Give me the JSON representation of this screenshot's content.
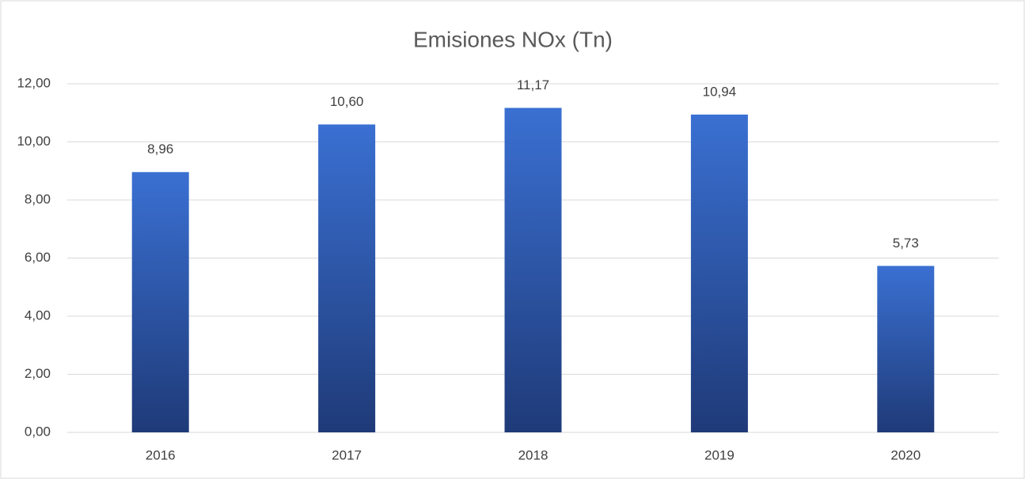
{
  "chart_data": {
    "type": "bar",
    "title": "Emisiones  NOx (Tn)",
    "categories": [
      "2016",
      "2017",
      "2018",
      "2019",
      "2020"
    ],
    "values": [
      8.96,
      10.6,
      11.17,
      10.94,
      5.73
    ],
    "value_labels": [
      "8,96",
      "10,60",
      "11,17",
      "10,94",
      "5,73"
    ],
    "color": "#2f5cb8",
    "ylim": [
      0,
      12
    ],
    "yticks": [
      {
        "value": 0,
        "label": "0,00"
      },
      {
        "value": 2,
        "label": "2,00"
      },
      {
        "value": 4,
        "label": "4,00"
      },
      {
        "value": 6,
        "label": "6,00"
      },
      {
        "value": 8,
        "label": "8,00"
      },
      {
        "value": 10,
        "label": "10,00"
      },
      {
        "value": 12,
        "label": "12,00"
      }
    ],
    "grid": true
  }
}
